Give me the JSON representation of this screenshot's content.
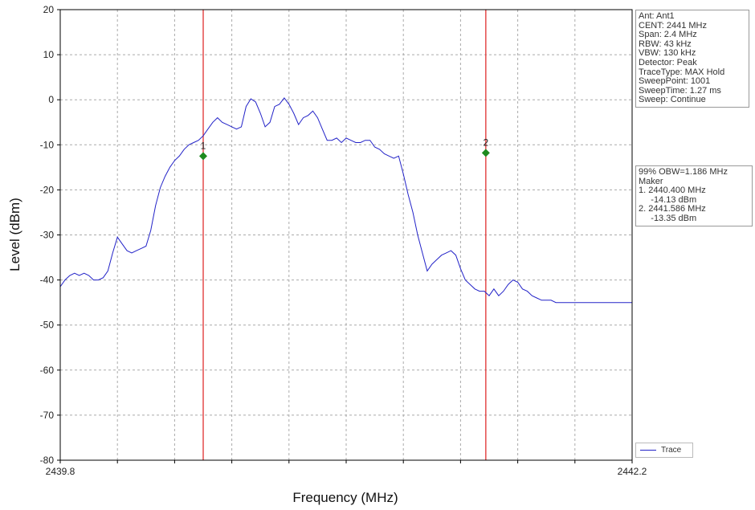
{
  "chart_data": {
    "type": "line",
    "title": "",
    "xlabel": "Frequency (MHz)",
    "ylabel": "Level (dBm)",
    "xlim": [
      2439.8,
      2442.2
    ],
    "ylim": [
      -80,
      20
    ],
    "x_tick_labels": [
      "2439.8",
      "2442.2"
    ],
    "y_ticks": [
      20,
      10,
      0,
      -10,
      -20,
      -30,
      -40,
      -50,
      -60,
      -70,
      -80
    ],
    "grid": true,
    "legend_position": "bottom-right",
    "series": [
      {
        "name": "Trace",
        "color": "#2323c8",
        "x": [
          2439.8,
          2439.82,
          2439.84,
          2439.86,
          2439.88,
          2439.9,
          2439.92,
          2439.94,
          2439.96,
          2439.98,
          2440.0,
          2440.02,
          2440.04,
          2440.06,
          2440.08,
          2440.1,
          2440.12,
          2440.14,
          2440.16,
          2440.18,
          2440.2,
          2440.22,
          2440.24,
          2440.26,
          2440.28,
          2440.3,
          2440.32,
          2440.34,
          2440.36,
          2440.38,
          2440.4,
          2440.42,
          2440.44,
          2440.46,
          2440.48,
          2440.5,
          2440.52,
          2440.54,
          2440.56,
          2440.58,
          2440.6,
          2440.62,
          2440.64,
          2440.66,
          2440.68,
          2440.7,
          2440.72,
          2440.74,
          2440.76,
          2440.78,
          2440.8,
          2440.82,
          2440.84,
          2440.86,
          2440.88,
          2440.9,
          2440.92,
          2440.94,
          2440.96,
          2440.98,
          2441.0,
          2441.02,
          2441.04,
          2441.06,
          2441.08,
          2441.1,
          2441.12,
          2441.14,
          2441.16,
          2441.18,
          2441.2,
          2441.22,
          2441.24,
          2441.26,
          2441.28,
          2441.3,
          2441.32,
          2441.34,
          2441.36,
          2441.38,
          2441.4,
          2441.42,
          2441.44,
          2441.46,
          2441.48,
          2441.5,
          2441.52,
          2441.54,
          2441.56,
          2441.58,
          2441.6,
          2441.62,
          2441.64,
          2441.66,
          2441.68,
          2441.7,
          2441.72,
          2441.74,
          2441.76,
          2441.78,
          2441.8,
          2441.82,
          2441.84,
          2441.86,
          2441.88,
          2441.9,
          2441.92,
          2441.94,
          2441.96,
          2441.98,
          2442.0,
          2442.02,
          2442.04,
          2442.06,
          2442.08,
          2442.1,
          2442.12,
          2442.14,
          2442.16,
          2442.18,
          2442.2
        ],
        "y": [
          -41.5,
          -40.0,
          -39.0,
          -38.5,
          -39.0,
          -38.5,
          -39.0,
          -40.0,
          -40.0,
          -39.5,
          -38.0,
          -34.0,
          -30.5,
          -32.0,
          -33.5,
          -34.0,
          -33.5,
          -33.0,
          -32.5,
          -29.0,
          -23.5,
          -19.5,
          -17.0,
          -15.0,
          -13.5,
          -12.5,
          -11.0,
          -10.0,
          -9.5,
          -9.0,
          -8.0,
          -6.5,
          -5.0,
          -4.0,
          -5.0,
          -5.5,
          -6.0,
          -6.5,
          -6.0,
          -1.5,
          0.2,
          -0.5,
          -3.0,
          -6.0,
          -5.0,
          -1.5,
          -1.0,
          0.4,
          -1.0,
          -3.0,
          -5.5,
          -4.0,
          -3.5,
          -2.5,
          -4.0,
          -6.5,
          -9.0,
          -9.0,
          -8.5,
          -9.5,
          -8.5,
          -9.0,
          -9.5,
          -9.5,
          -9.0,
          -9.0,
          -10.5,
          -11.0,
          -12.0,
          -12.5,
          -13.0,
          -12.5,
          -16.5,
          -21.0,
          -25.0,
          -30.0,
          -34.0,
          -38.0,
          -36.5,
          -35.5,
          -34.5,
          -34.0,
          -33.5,
          -34.5,
          -37.5,
          -40.0,
          -41.0,
          -42.0,
          -42.5,
          -42.5,
          -43.5,
          -42.0,
          -43.5,
          -42.5,
          -41.0,
          -40.0,
          -40.5,
          -42.0,
          -42.5,
          -43.5,
          -44.0,
          -44.5,
          -44.5,
          -44.5,
          -45.0,
          -45.0,
          -45.0,
          -45.0,
          -45.0,
          -45.0,
          -45.0,
          -45.0,
          -45.0,
          -45.0,
          -45.0,
          -45.0,
          -45.0,
          -45.0,
          -45.0,
          -45.0,
          -45.0
        ]
      }
    ],
    "vlines": [
      {
        "x": 2440.4,
        "color": "#e03030"
      },
      {
        "x": 2441.586,
        "color": "#e03030"
      }
    ],
    "markers": [
      {
        "label": "1",
        "x": 2440.4,
        "y": -12.5,
        "color": "#1e8a1e"
      },
      {
        "label": "2",
        "x": 2441.586,
        "y": -11.8,
        "color": "#1e8a1e"
      }
    ]
  },
  "settings_box": {
    "lines": [
      "Ant: Ant1",
      "CENT: 2441 MHz",
      "Span: 2.4 MHz",
      "RBW: 43 kHz",
      "VBW: 130 kHz",
      "Detector: Peak",
      "TraceType: MAX Hold",
      "SweepPoint: 1001",
      "SweepTime: 1.27 ms",
      "Sweep: Continue"
    ]
  },
  "marker_box": {
    "lines": [
      "99% OBW=1.186 MHz",
      "Maker",
      "1. 2440.400 MHz",
      "     -14.13 dBm",
      "2. 2441.586 MHz",
      "     -13.35 dBm"
    ]
  },
  "legend": {
    "label": "Trace",
    "color": "#2323c8"
  }
}
